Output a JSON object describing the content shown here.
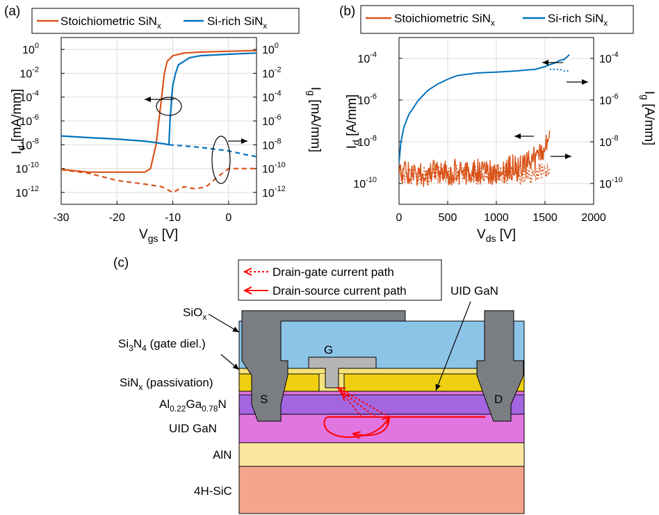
{
  "panel_a": {
    "tag": "(a)",
    "legend": {
      "s1": "Stoichiometric SiN",
      "s1_sub": "x",
      "s2": "Si-rich SiN",
      "s2_sub": "x"
    },
    "xlabel_main": "V",
    "xlabel_sub": "gs",
    "xlabel_unit": " [V]",
    "ylabel_left_main": "I",
    "ylabel_left_sub": "d",
    "ylabel_left_unit": " [mA/mm]",
    "ylabel_right_main": "I",
    "ylabel_right_sub": "g",
    "ylabel_right_unit": " [mA/mm]",
    "xticks": [
      "-30",
      "-20",
      "-10",
      "0"
    ],
    "yticks": [
      {
        "base": "10",
        "exp": "0"
      },
      {
        "base": "10",
        "exp": "-2"
      },
      {
        "base": "10",
        "exp": "-4"
      },
      {
        "base": "10",
        "exp": "-6"
      },
      {
        "base": "10",
        "exp": "-8"
      },
      {
        "base": "10",
        "exp": "-10"
      },
      {
        "base": "10",
        "exp": "-12"
      }
    ]
  },
  "panel_b": {
    "tag": "(b)",
    "legend": {
      "s1": "Stoichiometric SiN",
      "s1_sub": "x",
      "s2": "Si-rich SiN",
      "s2_sub": "x"
    },
    "xlabel_main": "V",
    "xlabel_sub": "ds",
    "xlabel_unit": " [V]",
    "ylabel_left_main": "I",
    "ylabel_left_sub": "d",
    "ylabel_left_unit": " [A/mm]",
    "ylabel_right_main": "I",
    "ylabel_right_sub": "g",
    "ylabel_right_unit": " [A/mm]",
    "xticks": [
      "0",
      "500",
      "1000",
      "1500",
      "2000"
    ],
    "yticks": [
      {
        "base": "10",
        "exp": "-4"
      },
      {
        "base": "10",
        "exp": "-6"
      },
      {
        "base": "10",
        "exp": "-8"
      },
      {
        "base": "10",
        "exp": "-10"
      }
    ]
  },
  "panel_c": {
    "tag": "(c)",
    "legend_dg": "Drain-gate current path",
    "legend_ds": "Drain-source current path",
    "labels": {
      "siox_main": "SiO",
      "siox_sub": "x",
      "si3n4_a": "Si",
      "si3n4_sub1": "3",
      "si3n4_b": "N",
      "si3n4_sub2": "4",
      "si3n4_c": " (gate diel.)",
      "sinx_main": "SiN",
      "sinx_sub": "x",
      "sinx_rest": " (passivation)",
      "algan_a": "Al",
      "algan_sub1": "0.22",
      "algan_b": "Ga",
      "algan_sub2": "0.78",
      "algan_c": "N",
      "uidgan_left": "UID GaN",
      "uidgan_top": "UID GaN",
      "aln": "AlN",
      "sic": "4H-SiC",
      "source": "S",
      "drain": "D",
      "gate": "G"
    },
    "colors": {
      "sio2": "#8cc4e8",
      "sinx": "#f0cf12",
      "si3n4": "#f6e47a",
      "algan": "#a366e0",
      "uidgan": "#e176e0",
      "aln": "#fbe6a0",
      "sic": "#f5a58c",
      "metal": "#7a7e83",
      "gate": "#b5b5b5",
      "path": "#ff0000"
    }
  },
  "chart_data": [
    {
      "type": "line",
      "title": "",
      "xlabel": "Vgs [V]",
      "ylabel": "Id [mA/mm]",
      "ylabel_right": "Ig [mA/mm]",
      "xlim": [
        -30,
        5
      ],
      "ylim": [
        1e-13,
        10
      ],
      "yscale": "log",
      "grid": true,
      "legend_position": "top",
      "series": [
        {
          "name": "Stoichiometric SiNx",
          "quantity": "Id",
          "style": "solid",
          "color": "#d95319",
          "x": [
            -31.5,
            -25,
            -20,
            -15,
            -14,
            -13,
            -12.5,
            -12,
            -11.5,
            -11,
            -10,
            -8,
            -5,
            0,
            5
          ],
          "y": [
            1e-10,
            5e-11,
            5e-11,
            5e-11,
            1e-10,
            1e-08,
            1e-06,
            0.0001,
            0.01,
            0.1,
            0.3,
            0.5,
            0.6,
            0.7,
            0.8
          ]
        },
        {
          "name": "Si-rich SiNx",
          "quantity": "Id",
          "style": "solid",
          "color": "#0072bd",
          "x": [
            -31.5,
            -25,
            -20,
            -15,
            -11.5,
            -10.7,
            -10.5,
            -10.2,
            -10,
            -9.5,
            -9,
            -7,
            -5,
            0,
            5
          ],
          "y": [
            6e-08,
            4e-08,
            3e-08,
            2e-08,
            1.2e-08,
            1e-08,
            1e-06,
            0.0001,
            0.001,
            0.01,
            0.05,
            0.2,
            0.3,
            0.4,
            0.5
          ]
        },
        {
          "name": "Stoichiometric SiNx",
          "quantity": "Ig",
          "style": "dashed",
          "color": "#d95319",
          "x": [
            -31.5,
            -25,
            -20,
            -15,
            -12,
            -10,
            -8,
            -6,
            -4,
            -2,
            0,
            2,
            5
          ],
          "y": [
            1e-10,
            4e-11,
            1e-11,
            5e-12,
            3e-12,
            1e-12,
            3e-12,
            2e-12,
            3e-12,
            2e-11,
            1e-10,
            1e-10,
            1e-10
          ]
        },
        {
          "name": "Si-rich SiNx",
          "quantity": "Ig",
          "style": "dashed",
          "color": "#0072bd",
          "x": [
            -10.7,
            -8,
            -5,
            -2,
            0,
            3,
            5
          ],
          "y": [
            1e-08,
            8e-09,
            6e-09,
            4e-09,
            3e-09,
            1.5e-09,
            1e-09
          ]
        }
      ]
    },
    {
      "type": "line",
      "title": "",
      "xlabel": "Vds [V]",
      "ylabel": "Id [A/mm]",
      "ylabel_right": "Ig [A/mm]",
      "xlim": [
        0,
        2000
      ],
      "ylim": [
        1e-11,
        0.001
      ],
      "yscale": "log",
      "grid": true,
      "legend_position": "top",
      "series": [
        {
          "name": "Si-rich SiNx",
          "quantity": "Id",
          "style": "solid",
          "color": "#0072bd",
          "x": [
            0,
            20,
            50,
            100,
            200,
            300,
            400,
            500,
            600,
            800,
            1000,
            1200,
            1400,
            1500,
            1550,
            1600,
            1650,
            1700,
            1750
          ],
          "y": [
            1e-09,
            1e-08,
            5e-08,
            2e-07,
            1e-06,
            3e-06,
            6e-06,
            1e-05,
            1.5e-05,
            2e-05,
            2.2e-05,
            2.5e-05,
            3e-05,
            4e-05,
            5e-05,
            6e-05,
            8e-05,
            9e-05,
            0.00015
          ]
        },
        {
          "name": "Si-rich SiNx",
          "quantity": "Ig",
          "style": "dotted",
          "color": "#0072bd",
          "x": [
            1550,
            1600,
            1650,
            1700,
            1750
          ],
          "y": [
            3e-05,
            3e-05,
            3e-05,
            2.5e-05,
            2.5e-05
          ]
        },
        {
          "name": "Stoichiometric SiNx",
          "quantity": "Id",
          "style": "solid",
          "color": "#d95319",
          "x": [
            0,
            250,
            500,
            750,
            1000,
            1250,
            1400,
            1500,
            1550
          ],
          "y": [
            1e-09,
            1e-09,
            1e-09,
            1e-09,
            1e-09,
            2e-09,
            6e-09,
            1.5e-08,
            5e-08
          ]
        },
        {
          "name": "Stoichiometric SiNx",
          "quantity": "Ig",
          "style": "dotted",
          "color": "#d95319",
          "x": [
            0,
            250,
            500,
            750,
            1000,
            1250,
            1400,
            1550
          ],
          "y": [
            5e-10,
            5e-10,
            5e-10,
            5e-10,
            5e-10,
            5e-10,
            6e-10,
            8e-10
          ]
        }
      ]
    }
  ]
}
